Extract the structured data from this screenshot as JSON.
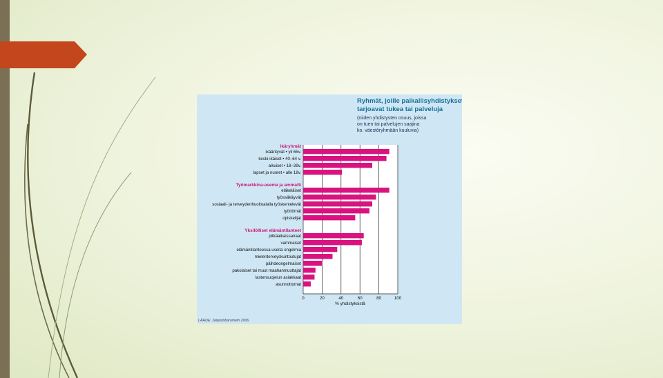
{
  "slide": {
    "colors": {
      "left_strip": "#7b6f55",
      "red_tab": "#c3461c",
      "background": "#eef3dc",
      "figure_panel": "#cfe7f4"
    }
  },
  "figure": {
    "caption_title_lines": [
      "Ryhmät, joille paikallisyhdistykset",
      "tarjoavat tukea tai palveluja"
    ],
    "caption_sub_lines": [
      "(niiden yhdistysten osuus, joissa",
      "on tuen tai palvelujen saajina",
      "ko. väestöryhmään kuuluvia)"
    ],
    "source": "LÄHDE: Järjestöbarometri 2006."
  },
  "chart_data": {
    "type": "bar",
    "orientation": "horizontal",
    "bar_color": "#d8137f",
    "grid": true,
    "xlabel": "% yhdistyksistä",
    "xlim": [
      0,
      100
    ],
    "xticks": [
      "0",
      "20",
      "40",
      "60",
      "80",
      "100"
    ],
    "groups": [
      {
        "name": "Ikäryhmät",
        "categories": [
          "ikääntyvät • yli 65v.",
          "keski-ikäiset • 40–64 v.",
          "aikuiset • 18–39v.",
          "lapset ja nuoret • alle 18v."
        ],
        "values": [
          91,
          88,
          73,
          41
        ]
      },
      {
        "name": "Työmarkkina-asema ja ammatti",
        "categories": [
          "eläkeläiset",
          "työssäkäyvät",
          "sosiaali- ja terveydenhuoltoalalla työskentelevät",
          "työttömät",
          "opiskelijat"
        ],
        "values": [
          91,
          77,
          73,
          70,
          55
        ]
      },
      {
        "name": "Yksilölliset elämäntilanteet",
        "categories": [
          "pitkäaikaissairaat",
          "vammaiset",
          "elämäntilanteessa useita ongelmia",
          "mielenterveyskuntoutujat",
          "päihdeongelmaiset",
          "pakolaiset tai muut maahanmuuttajat",
          "lastensuojelun asiakkaat",
          "asunnottomat"
        ],
        "values": [
          64,
          62,
          36,
          31,
          20,
          13,
          12,
          8
        ]
      }
    ]
  }
}
